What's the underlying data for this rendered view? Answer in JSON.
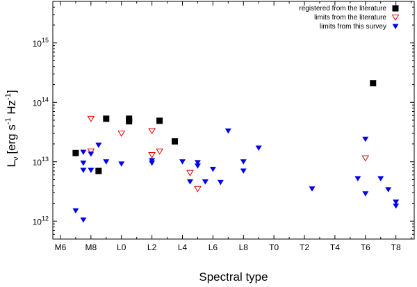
{
  "chart_data": {
    "type": "scatter",
    "xlabel": "Spectral type",
    "ylabel": "L",
    "ylabel_sub": "ν",
    "ylabel_units": "[erg s",
    "ylabel_units_exp1": "-1",
    "ylabel_units_mid": " Hz",
    "ylabel_units_exp2": "-1",
    "ylabel_units_end": "]",
    "x_scale_note": "0 = M0, 10 = L0, 20 = T0",
    "xlim": [
      5.5,
      29.2
    ],
    "ylim": [
      500000000000.0,
      5000000000000000.0
    ],
    "yscale": "log",
    "x_ticks": [
      {
        "x": 6,
        "label": "M6"
      },
      {
        "x": 8,
        "label": "M8"
      },
      {
        "x": 10,
        "label": "L0"
      },
      {
        "x": 12,
        "label": "L2"
      },
      {
        "x": 14,
        "label": "L4"
      },
      {
        "x": 16,
        "label": "L6"
      },
      {
        "x": 18,
        "label": "L8"
      },
      {
        "x": 20,
        "label": "T0"
      },
      {
        "x": 22,
        "label": "T2"
      },
      {
        "x": 24,
        "label": "T4"
      },
      {
        "x": 26,
        "label": "T6"
      },
      {
        "x": 28,
        "label": "T8"
      }
    ],
    "y_ticks": [
      {
        "y": 1000000000000.0,
        "base": "10",
        "exp": "12"
      },
      {
        "y": 10000000000000.0,
        "base": "10",
        "exp": "13"
      },
      {
        "y": 100000000000000.0,
        "base": "10",
        "exp": "14"
      },
      {
        "y": 1000000000000000.0,
        "base": "10",
        "exp": "15"
      }
    ],
    "legend_position": "top-right",
    "series": [
      {
        "name": "registered from the literature",
        "marker": "filled-square",
        "color": "#000000",
        "points": [
          [
            7.0,
            14000000000000.0
          ],
          [
            8.5,
            7000000000000.0
          ],
          [
            9.0,
            53000000000000.0
          ],
          [
            10.5,
            53000000000000.0
          ],
          [
            10.5,
            48000000000000.0
          ],
          [
            12.5,
            49000000000000.0
          ],
          [
            13.5,
            22000000000000.0
          ],
          [
            26.5,
            210000000000000.0
          ]
        ]
      },
      {
        "name": "limits from the literature",
        "marker": "open-triangle-down",
        "color": "#dd0000",
        "points": [
          [
            8.0,
            53000000000000.0
          ],
          [
            8.0,
            15000000000000.0
          ],
          [
            10.0,
            30000000000000.0
          ],
          [
            12.0,
            33000000000000.0
          ],
          [
            12.0,
            13000000000000.0
          ],
          [
            12.5,
            15000000000000.0
          ],
          [
            14.5,
            6500000000000.0
          ],
          [
            15.0,
            3500000000000.0
          ],
          [
            26.0,
            11500000000000.0
          ]
        ]
      },
      {
        "name": "limits from this survey",
        "marker": "filled-triangle-down",
        "color": "#0000ee",
        "points": [
          [
            7.0,
            1500000000000.0
          ],
          [
            7.5,
            1050000000000.0
          ],
          [
            7.5,
            14500000000000.0
          ],
          [
            7.5,
            9500000000000.0
          ],
          [
            7.5,
            7200000000000.0
          ],
          [
            8.0,
            13500000000000.0
          ],
          [
            8.0,
            7200000000000.0
          ],
          [
            8.5,
            19000000000000.0
          ],
          [
            9.0,
            10000000000000.0
          ],
          [
            10.0,
            9200000000000.0
          ],
          [
            12.0,
            10500000000000.0
          ],
          [
            12.0,
            9500000000000.0
          ],
          [
            14.0,
            10000000000000.0
          ],
          [
            14.5,
            4600000000000.0
          ],
          [
            15.0,
            9700000000000.0
          ],
          [
            15.0,
            8500000000000.0
          ],
          [
            15.5,
            4600000000000.0
          ],
          [
            16.0,
            7500000000000.0
          ],
          [
            16.5,
            4500000000000.0
          ],
          [
            17.0,
            33000000000000.0
          ],
          [
            18.0,
            10000000000000.0
          ],
          [
            18.0,
            7000000000000.0
          ],
          [
            19.0,
            17000000000000.0
          ],
          [
            22.5,
            3500000000000.0
          ],
          [
            25.5,
            5200000000000.0
          ],
          [
            26.0,
            24000000000000.0
          ],
          [
            26.0,
            2900000000000.0
          ],
          [
            27.0,
            5200000000000.0
          ],
          [
            27.5,
            3400000000000.0
          ],
          [
            28.0,
            2100000000000.0
          ],
          [
            28.0,
            1800000000000.0
          ]
        ]
      }
    ]
  }
}
